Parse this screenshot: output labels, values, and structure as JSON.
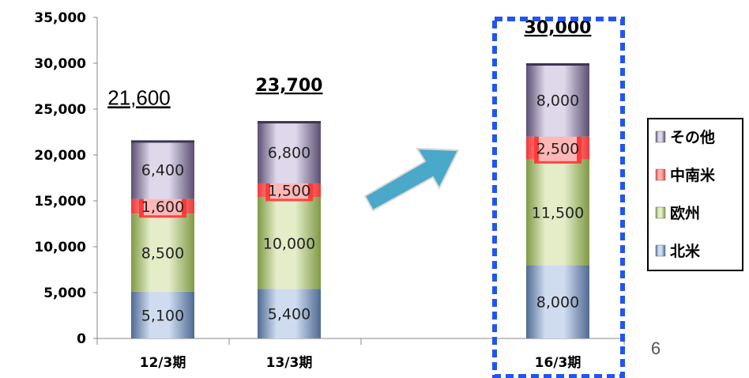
{
  "chart_data": {
    "type": "bar",
    "stacked": true,
    "categories": [
      "12/3期",
      "13/3期",
      "16/3期"
    ],
    "series": [
      {
        "name": "北米",
        "values": [
          5100,
          5400,
          8000
        ],
        "color": "#4f6a93",
        "label_text": [
          "5,100",
          "5,400",
          "8,000"
        ]
      },
      {
        "name": "欧州",
        "values": [
          8500,
          10000,
          11500
        ],
        "color": "#7f9a45",
        "label_text": [
          "8,500",
          "10,000",
          "11,500"
        ]
      },
      {
        "name": "中南米",
        "values": [
          1600,
          1500,
          2500
        ],
        "color": "#f03a3a",
        "label_text": [
          "1,600",
          "1,500",
          "2,500"
        ]
      },
      {
        "name": "その他",
        "values": [
          6400,
          6800,
          8000
        ],
        "color": "#5c4f73",
        "label_text": [
          "6,400",
          "6,800",
          "8,000"
        ]
      }
    ],
    "totals": [
      21600,
      23700,
      30000
    ],
    "total_labels": [
      "21,600",
      "23,700",
      "30,000"
    ],
    "ylim": [
      0,
      35000
    ],
    "yticks": [
      "0",
      "5,000",
      "10,000",
      "15,000",
      "20,000",
      "25,000",
      "30,000",
      "35,000"
    ],
    "legend": {
      "placement": "right",
      "order": [
        "その他",
        "中南米",
        "欧州",
        "北米"
      ]
    },
    "highlight": {
      "category": "16/3期",
      "style": "dashed blue box",
      "color": "#2255ee"
    },
    "arrow_color": "#4aa8c8",
    "grid": false
  },
  "page_number": "6"
}
